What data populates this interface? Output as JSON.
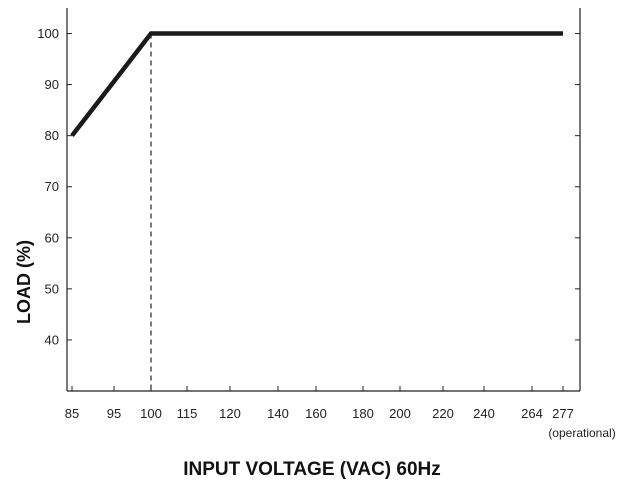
{
  "chart_data": {
    "type": "line",
    "xlabel": "INPUT VOLTAGE (VAC) 60Hz",
    "ylabel": "LOAD (%)",
    "x_ticks": [
      "85",
      "95",
      "100",
      "115",
      "120",
      "140",
      "160",
      "180",
      "200",
      "220",
      "240",
      "264",
      "277"
    ],
    "x_tick_note": "(operational)",
    "y_ticks": [
      40,
      50,
      60,
      70,
      80,
      90,
      100
    ],
    "ylim": [
      30,
      105
    ],
    "series": [
      {
        "x": [
          "85",
          "100",
          "277"
        ],
        "values": [
          80,
          100,
          100
        ]
      }
    ],
    "reference_line": {
      "x": "100",
      "style": "dashed"
    },
    "grid": false,
    "line_color": "#1a1a1a"
  }
}
